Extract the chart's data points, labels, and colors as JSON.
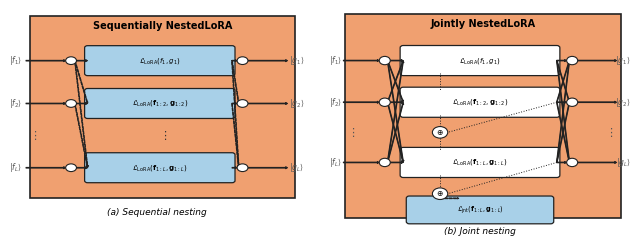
{
  "fig_width": 6.4,
  "fig_height": 2.49,
  "bg_orange": "#F0A070",
  "bg_blue": "#A8D0E8",
  "bg_white": "#FFFFFF",
  "box_edge": "#222222",
  "left_title": "Sequentially NestedLoRA",
  "right_title": "Jointly NestedLoRA",
  "caption_left": "(a) Sequential nesting",
  "caption_right": "(b) Joint nesting",
  "lora_labels_left": [
    "$\\mathcal{L}_{\\mathrm{LoRA}}(f_1, g_1)$",
    "$\\mathcal{L}_{\\mathrm{LoRA}}(\\mathbf{f}_{1:2}, \\mathbf{g}_{1:2})$",
    "$\\mathcal{L}_{\\mathrm{LoRA}}(\\mathbf{f}_{1:L}, \\mathbf{g}_{1:L})$"
  ],
  "lora_labels_right": [
    "$\\mathcal{L}_{\\mathrm{LoRA}}(f_1, g_1)$",
    "$\\mathcal{L}_{\\mathrm{LoRA}}(\\mathbf{f}_{1:2}, \\mathbf{g}_{1:2})$",
    "$\\mathcal{L}_{\\mathrm{LoRA}}(\\mathbf{f}_{1:L}, \\mathbf{g}_{1:L})$"
  ],
  "jnt_label": "$\\mathcal{L}_{\\mathrm{jnt}}(\\mathbf{f}_{1:L}, \\mathbf{g}_{1:L})$"
}
